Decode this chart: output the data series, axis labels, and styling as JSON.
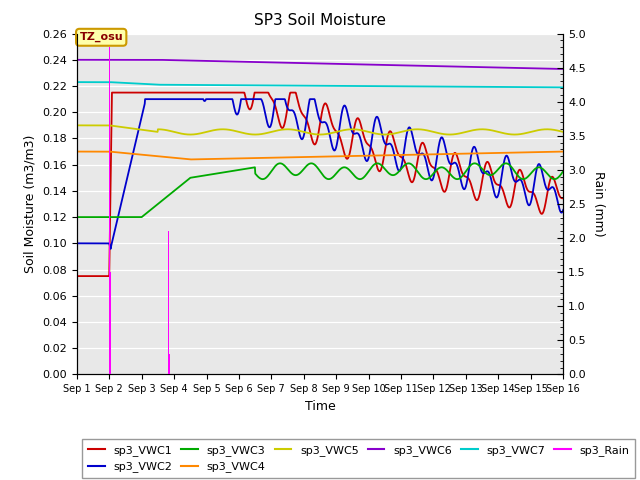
{
  "title": "SP3 Soil Moisture",
  "ylabel_left": "Soil Moisture (m3/m3)",
  "ylabel_right": "Rain (mm)",
  "xlabel": "Time",
  "ylim_left": [
    0.0,
    0.26
  ],
  "ylim_right": [
    0.0,
    5.0
  ],
  "yticks_left": [
    0.0,
    0.02,
    0.04,
    0.06,
    0.08,
    0.1,
    0.12,
    0.14,
    0.16,
    0.18,
    0.2,
    0.22,
    0.24,
    0.26
  ],
  "yticks_right": [
    0.0,
    0.5,
    1.0,
    1.5,
    2.0,
    2.5,
    3.0,
    3.5,
    4.0,
    4.5,
    5.0
  ],
  "xtick_labels": [
    "Sep 1",
    "Sep 2",
    "Sep 3",
    "Sep 4",
    "Sep 5",
    "Sep 6",
    "Sep 7",
    "Sep 8",
    "Sep 9",
    "Sep 10",
    "Sep 11",
    "Sep 12",
    "Sep 13",
    "Sep 14",
    "Sep 15",
    "Sep 16"
  ],
  "annotation_text": "TZ_osu",
  "annotation_color": "#880000",
  "annotation_bg": "#ffffaa",
  "annotation_border": "#cc9900",
  "background_color": "#e8e8e8",
  "series_colors": {
    "VWC1": "#cc0000",
    "VWC2": "#0000cc",
    "VWC3": "#00aa00",
    "VWC4": "#ff8800",
    "VWC5": "#cccc00",
    "VWC6": "#8800cc",
    "VWC7": "#00cccc",
    "Rain": "#ff00ff"
  },
  "legend_entries": [
    {
      "label": "sp3_VWC1",
      "color": "#cc0000"
    },
    {
      "label": "sp3_VWC2",
      "color": "#0000cc"
    },
    {
      "label": "sp3_VWC3",
      "color": "#00aa00"
    },
    {
      "label": "sp3_VWC4",
      "color": "#ff8800"
    },
    {
      "label": "sp3_VWC5",
      "color": "#cccc00"
    },
    {
      "label": "sp3_VWC6",
      "color": "#8800cc"
    },
    {
      "label": "sp3_VWC7",
      "color": "#00cccc"
    },
    {
      "label": "sp3_Rain",
      "color": "#ff00ff"
    }
  ]
}
